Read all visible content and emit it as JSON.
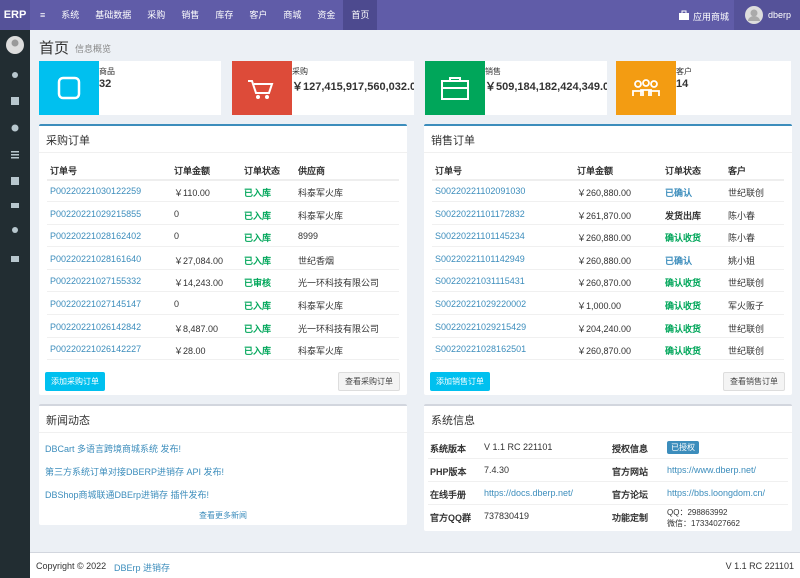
{
  "nav": {
    "logo": "ERP",
    "menu": [
      "系统",
      "基础数据",
      "采购",
      "销售",
      "库存",
      "客户",
      "商城",
      "资金",
      "首页"
    ],
    "store": "应用商城",
    "user": "dberp"
  },
  "page": {
    "title": "首页",
    "subtitle": "信息概览"
  },
  "info_boxes": [
    {
      "label": "商品",
      "value": "32",
      "color": "#00c0ef"
    },
    {
      "label": "采购",
      "value": "￥127,415,917,560,032.0",
      "color": "#dd4b39"
    },
    {
      "label": "销售",
      "value": "￥509,184,182,424,349.0",
      "color": "#00a65a"
    },
    {
      "label": "客户",
      "value": "14",
      "color": "#f39c12"
    }
  ],
  "purchase": {
    "title": "采购订单",
    "headers": [
      "订单号",
      "订单金额",
      "订单状态",
      "供应商"
    ],
    "rows": [
      {
        "cells": [
          "P00220221030122259",
          "￥110.00",
          "已入库",
          "科泰军火库"
        ],
        "status_color": "#00a65a"
      },
      {
        "cells": [
          "P00220221029215855",
          "0",
          "已入库",
          "科泰军火库"
        ],
        "status_color": "#00a65a"
      },
      {
        "cells": [
          "P00220221028162402",
          "0",
          "已入库",
          "8999"
        ],
        "status_color": "#00a65a"
      },
      {
        "cells": [
          "P00220221028161640",
          "￥27,084.00",
          "已入库",
          "世纪香烟"
        ],
        "status_color": "#00a65a"
      },
      {
        "cells": [
          "P00220221027155332",
          "￥14,243.00",
          "已审核",
          "光一环科技有限公司"
        ],
        "status_color": "#00a65a"
      },
      {
        "cells": [
          "P00220221027145147",
          "0",
          "已入库",
          "科泰军火库"
        ],
        "status_color": "#00a65a"
      },
      {
        "cells": [
          "P00220221026142842",
          "￥8,487.00",
          "已入库",
          "光一环科技有限公司"
        ],
        "status_color": "#00a65a"
      },
      {
        "cells": [
          "P00220221026142227",
          "￥28.00",
          "已入库",
          "科泰军火库"
        ],
        "status_color": "#00a65a"
      }
    ],
    "add_button": "添加采购订单",
    "view_button": "查看采购订单"
  },
  "sales": {
    "title": "销售订单",
    "headers": [
      "订单号",
      "订单金额",
      "订单状态",
      "客户"
    ],
    "rows": [
      {
        "cells": [
          "S00220221102091030",
          "￥260,880.00",
          "已确认",
          "世纪联创"
        ],
        "status_color": "#3c8dbc"
      },
      {
        "cells": [
          "S00220221101172832",
          "￥261,870.00",
          "发货出库",
          "陈小春"
        ],
        "status_color": "#333333"
      },
      {
        "cells": [
          "S00220221101145234",
          "￥260,880.00",
          "确认收货",
          "陈小春"
        ],
        "status_color": "#00a65a"
      },
      {
        "cells": [
          "S00220221101142949",
          "￥260,880.00",
          "已确认",
          "姚小姐"
        ],
        "status_color": "#3c8dbc"
      },
      {
        "cells": [
          "S00220221031115431",
          "￥260,870.00",
          "确认收货",
          "世纪联创"
        ],
        "status_color": "#00a65a"
      },
      {
        "cells": [
          "S00220221029220002",
          "￥1,000.00",
          "确认收货",
          "军火贩子"
        ],
        "status_color": "#00a65a"
      },
      {
        "cells": [
          "S00220221029215429",
          "￥204,240.00",
          "确认收货",
          "世纪联创"
        ],
        "status_color": "#00a65a"
      },
      {
        "cells": [
          "S00220221028162501",
          "￥260,870.00",
          "确认收货",
          "世纪联创"
        ],
        "status_color": "#00a65a"
      }
    ],
    "add_button": "添加销售订单",
    "view_button": "查看销售订单"
  },
  "news": {
    "title": "新闻动态",
    "items": [
      "DBCart 多语言跨境商城系统 发布!",
      "第三方系统订单对接DBERP进销存 API 发布!",
      "DBShop商城联通DBErp进销存 插件发布!"
    ],
    "more": "查看更多新闻"
  },
  "system": {
    "title": "系统信息",
    "rows": [
      [
        "系统版本",
        "V 1.1 RC 221101",
        "授权信息",
        "已授权"
      ],
      [
        "PHP版本",
        "7.4.30",
        "官方网站",
        "https://www.dberp.net/"
      ],
      [
        "在线手册",
        "https://docs.dberp.net/",
        "官方论坛",
        "https://bbs.loongdom.cn/"
      ],
      [
        "官方QQ群",
        "737830419",
        "功能定制",
        "QQ：298863992",
        "微信：17334027662"
      ]
    ]
  },
  "footer": {
    "copyright": "Copyright © 2022",
    "link": "DBErp 进销存",
    "version": "V 1.1 RC 221101"
  }
}
